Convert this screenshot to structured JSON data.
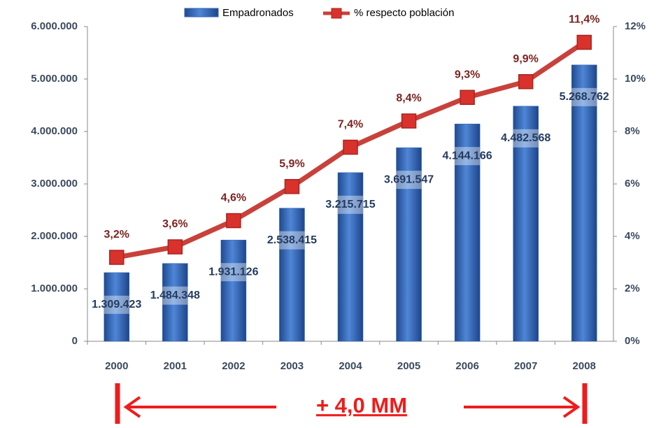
{
  "chart_data": {
    "type": "bar",
    "categories": [
      "2000",
      "2001",
      "2002",
      "2003",
      "2004",
      "2005",
      "2006",
      "2007",
      "2008"
    ],
    "series": [
      {
        "name": "Empadronados",
        "type": "bar",
        "color": "#2f63b3",
        "values": [
          1309423,
          1484348,
          1931126,
          2538415,
          3215715,
          3691547,
          4144166,
          4482568,
          5268762
        ],
        "value_labels": [
          "1.309.423",
          "1.484.348",
          "1.931.126",
          "2.538.415",
          "3.215.715",
          "3.691.547",
          "4.144.166",
          "4.482.568",
          "5.268.762"
        ]
      },
      {
        "name": "% respecto población",
        "type": "line",
        "axis": "y2",
        "color": "#c8413b",
        "values": [
          3.2,
          3.6,
          4.6,
          5.9,
          7.4,
          8.4,
          9.3,
          9.9,
          11.4
        ],
        "value_labels": [
          "3,2%",
          "3,6%",
          "4,6%",
          "5,9%",
          "7,4%",
          "8,4%",
          "9,3%",
          "9,9%",
          "11,4%"
        ]
      }
    ],
    "ylim": [
      0,
      6000000
    ],
    "yticks": [
      0,
      {
        "value": 1000000,
        "label": "1.000.000"
      },
      {
        "value": 2000000,
        "label": "2.000.000"
      },
      {
        "value": 3000000,
        "label": "3.000.000"
      },
      {
        "value": 4000000,
        "label": "4.000.000"
      },
      {
        "value": 5000000,
        "label": "5.000.000"
      },
      {
        "value": 6000000,
        "label": "6.000.000"
      }
    ],
    "y2lim": [
      0,
      12
    ],
    "y2ticks": [
      {
        "value": 0,
        "label": "0%"
      },
      {
        "value": 2,
        "label": "2%"
      },
      {
        "value": 4,
        "label": "4%"
      },
      {
        "value": 6,
        "label": "6%"
      },
      {
        "value": 8,
        "label": "8%"
      },
      {
        "value": 10,
        "label": "10%"
      },
      {
        "value": 12,
        "label": "12%"
      }
    ],
    "grid": false,
    "legend": "top",
    "annotation": "+ 4,0 MM"
  }
}
